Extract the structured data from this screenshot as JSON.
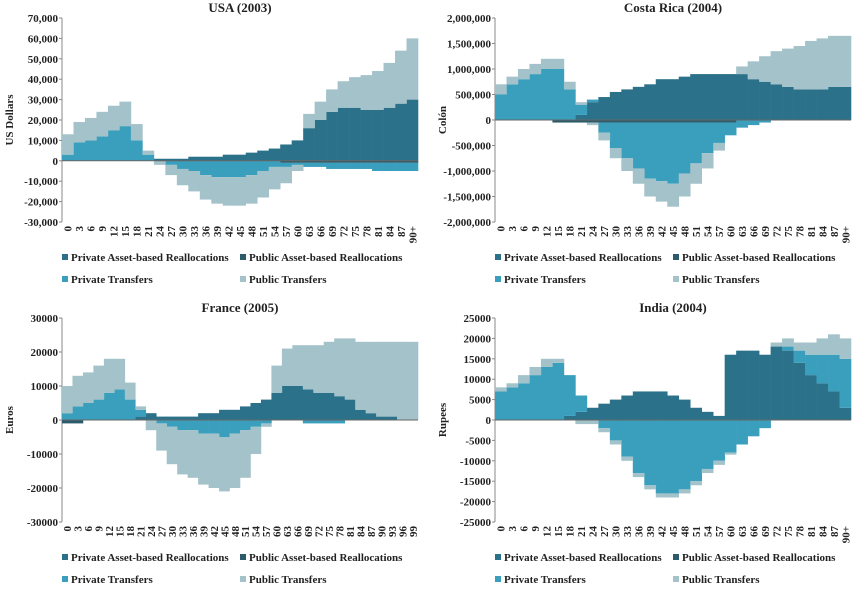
{
  "chart_data": [
    {
      "type": "bar",
      "stacked": true,
      "title": "USA (2003)",
      "y_label": "US Dollars",
      "categories": [
        "0",
        "3",
        "6",
        "9",
        "12",
        "15",
        "18",
        "21",
        "24",
        "27",
        "30",
        "33",
        "36",
        "39",
        "42",
        "45",
        "48",
        "51",
        "54",
        "57",
        "60",
        "63",
        "66",
        "69",
        "72",
        "75",
        "78",
        "81",
        "84",
        "87",
        "90+"
      ],
      "series": [
        {
          "name": "Private Asset-based Reallocations",
          "color": "#2b7189",
          "values": [
            0,
            0,
            0,
            0,
            0,
            0,
            0,
            0,
            1000,
            1000,
            1000,
            2000,
            2000,
            2000,
            3000,
            3000,
            4000,
            5000,
            6000,
            8000,
            10000,
            16000,
            20000,
            24000,
            26000,
            26000,
            25000,
            25000,
            26000,
            28000,
            30000
          ]
        },
        {
          "name": "Public Asset-based Reallocations",
          "color": "#2c5b6b",
          "values": [
            0,
            0,
            0,
            0,
            0,
            0,
            0,
            0,
            0,
            0,
            0,
            0,
            0,
            0,
            0,
            0,
            0,
            0,
            0,
            -1000,
            -1000,
            -1000,
            -1000,
            -1000,
            -1000,
            -1000,
            -1000,
            -1000,
            -1000,
            -1000,
            -1000
          ]
        },
        {
          "name": "Private Transfers",
          "color": "#3a9fbd",
          "values": [
            3000,
            9000,
            10000,
            12000,
            15000,
            17000,
            10000,
            3000,
            0,
            -2000,
            -4000,
            -5000,
            -7000,
            -8000,
            -8000,
            -8000,
            -7000,
            -5000,
            -3000,
            -2000,
            -1000,
            -2000,
            -2000,
            -3000,
            -3000,
            -3000,
            -3000,
            -4000,
            -4000,
            -4000,
            -4000
          ]
        },
        {
          "name": "Public Transfers",
          "color": "#a3c2c9",
          "values": [
            10000,
            10000,
            11000,
            12000,
            12000,
            12000,
            8000,
            2000,
            -2000,
            -5000,
            -8000,
            -10000,
            -12000,
            -13000,
            -14000,
            -14000,
            -14000,
            -13000,
            -11000,
            -8000,
            -3000,
            7000,
            9000,
            11000,
            13000,
            15000,
            17000,
            19000,
            22000,
            26000,
            30000
          ]
        }
      ],
      "ylim": [
        -30000,
        70000
      ],
      "yticks": [
        {
          "value": -30000,
          "label": "-30,000"
        },
        {
          "value": -20000,
          "label": "-20,000"
        },
        {
          "value": -10000,
          "label": "-10,000"
        },
        0,
        {
          "value": 10000,
          "label": "10,000"
        },
        {
          "value": 20000,
          "label": "20,000"
        },
        {
          "value": 30000,
          "label": "30,000"
        },
        {
          "value": 40000,
          "label": "40,000"
        },
        {
          "value": 50000,
          "label": "50,000"
        },
        {
          "value": 60000,
          "label": "60,000"
        },
        {
          "value": 70000,
          "label": "70,000"
        }
      ]
    },
    {
      "type": "bar",
      "stacked": true,
      "title": "Costa Rica (2004)",
      "y_label": "Colón",
      "categories": [
        "0",
        "3",
        "6",
        "9",
        "12",
        "15",
        "18",
        "21",
        "24",
        "27",
        "30",
        "33",
        "36",
        "39",
        "42",
        "45",
        "48",
        "51",
        "54",
        "57",
        "60",
        "63",
        "66",
        "69",
        "72",
        "75",
        "78",
        "81",
        "84",
        "87",
        "90+"
      ],
      "series": [
        {
          "name": "Private Asset-based Reallocations",
          "color": "#2b7189",
          "values": [
            0,
            0,
            0,
            0,
            0,
            0,
            0,
            100000,
            350000,
            450000,
            550000,
            600000,
            650000,
            700000,
            800000,
            800000,
            850000,
            900000,
            900000,
            900000,
            900000,
            900000,
            800000,
            750000,
            700000,
            650000,
            600000,
            600000,
            600000,
            650000,
            650000
          ]
        },
        {
          "name": "Public Asset-based Reallocations",
          "color": "#2c5b6b",
          "values": [
            0,
            0,
            0,
            0,
            0,
            -50000,
            -50000,
            -50000,
            -50000,
            -50000,
            -50000,
            -50000,
            -50000,
            -50000,
            -50000,
            -50000,
            -50000,
            -50000,
            -50000,
            -50000,
            -50000,
            0,
            0,
            0,
            0,
            0,
            0,
            0,
            0,
            0,
            0
          ]
        },
        {
          "name": "Private Transfers",
          "color": "#3a9fbd",
          "values": [
            500000,
            700000,
            800000,
            900000,
            1000000,
            1000000,
            600000,
            200000,
            50000,
            -200000,
            -500000,
            -700000,
            -900000,
            -1100000,
            -1150000,
            -1200000,
            -1000000,
            -800000,
            -600000,
            -400000,
            -250000,
            -150000,
            -100000,
            -50000,
            0,
            0,
            0,
            0,
            0,
            0,
            0
          ]
        },
        {
          "name": "Public Transfers",
          "color": "#a3c2c9",
          "values": [
            200000,
            150000,
            200000,
            200000,
            200000,
            200000,
            150000,
            50000,
            -50000,
            -150000,
            -200000,
            -250000,
            -300000,
            -350000,
            -400000,
            -450000,
            -450000,
            -400000,
            -300000,
            -150000,
            0,
            150000,
            350000,
            500000,
            650000,
            750000,
            850000,
            950000,
            1000000,
            1000000,
            1000000
          ]
        }
      ],
      "ylim": [
        -2000000,
        2000000
      ],
      "yticks": [
        {
          "value": -2000000,
          "label": "-2,000,000"
        },
        {
          "value": -1500000,
          "label": "-1,500,000"
        },
        {
          "value": -1000000,
          "label": "-1,000,000"
        },
        {
          "value": -500000,
          "label": "-500,000"
        },
        0,
        {
          "value": 500000,
          "label": "500,000"
        },
        {
          "value": 1000000,
          "label": "1,000,000"
        },
        {
          "value": 1500000,
          "label": "1,500,000"
        },
        {
          "value": 2000000,
          "label": "2,000,000"
        }
      ]
    },
    {
      "type": "bar",
      "stacked": true,
      "title": "France (2005)",
      "y_label": "Euros",
      "categories": [
        "0",
        "3",
        "6",
        "9",
        "12",
        "15",
        "18",
        "21",
        "24",
        "27",
        "30",
        "33",
        "36",
        "39",
        "42",
        "45",
        "48",
        "51",
        "54",
        "57",
        "60",
        "63",
        "66",
        "69",
        "72",
        "75",
        "78",
        "81",
        "84",
        "87",
        "90",
        "93",
        "96",
        "99"
      ],
      "series": [
        {
          "name": "Private Asset-based Reallocations",
          "color": "#2b7189",
          "values": [
            0,
            0,
            0,
            0,
            0,
            0,
            0,
            1000,
            2000,
            1000,
            1000,
            1000,
            1000,
            2000,
            2000,
            3000,
            3000,
            4000,
            5000,
            6000,
            8000,
            10000,
            10000,
            9000,
            8000,
            8000,
            7000,
            6000,
            3000,
            2000,
            1000,
            1000,
            0,
            0
          ]
        },
        {
          "name": "Public Asset-based Reallocations",
          "color": "#2c5b6b",
          "values": [
            -1000,
            -1000,
            0,
            0,
            0,
            0,
            0,
            0,
            0,
            0,
            0,
            0,
            0,
            0,
            0,
            0,
            0,
            0,
            0,
            0,
            0,
            0,
            0,
            0,
            0,
            0,
            0,
            0,
            0,
            0,
            0,
            0,
            0,
            0
          ]
        },
        {
          "name": "Private Transfers",
          "color": "#3a9fbd",
          "values": [
            2000,
            4000,
            5000,
            6000,
            8000,
            9000,
            6000,
            2000,
            0,
            -1000,
            -2000,
            -3000,
            -3000,
            -4000,
            -4000,
            -5000,
            -4000,
            -3000,
            -2000,
            -1000,
            0,
            0,
            0,
            -1000,
            -1000,
            -1000,
            -1000,
            0,
            0,
            0,
            0,
            0,
            0,
            0
          ]
        },
        {
          "name": "Public Transfers",
          "color": "#a3c2c9",
          "values": [
            8000,
            9000,
            9000,
            10000,
            10000,
            9000,
            5000,
            1000,
            -3000,
            -8000,
            -11000,
            -13000,
            -14000,
            -15000,
            -16000,
            -16000,
            -16000,
            -14000,
            -8000,
            -1000,
            8000,
            11000,
            12000,
            13000,
            14000,
            15000,
            17000,
            18000,
            20000,
            21000,
            22000,
            22000,
            23000,
            23000
          ]
        }
      ],
      "ylim": [
        -30000,
        30000
      ],
      "yticks": [
        -30000,
        -20000,
        -10000,
        0,
        10000,
        20000,
        30000
      ]
    },
    {
      "type": "bar",
      "stacked": true,
      "title": "India (2004)",
      "y_label": "Rupees",
      "categories": [
        "0",
        "3",
        "6",
        "9",
        "12",
        "15",
        "18",
        "21",
        "24",
        "27",
        "30",
        "33",
        "36",
        "39",
        "42",
        "45",
        "48",
        "51",
        "54",
        "57",
        "60",
        "63",
        "66",
        "69",
        "72",
        "75",
        "78",
        "81",
        "84",
        "87",
        "90+"
      ],
      "series": [
        {
          "name": "Private Asset-based Reallocations",
          "color": "#2b7189",
          "values": [
            0,
            0,
            0,
            0,
            0,
            0,
            1000,
            2000,
            3000,
            4000,
            5000,
            6000,
            7000,
            7000,
            7000,
            6000,
            5000,
            3000,
            2000,
            1000,
            16000,
            17000,
            17000,
            16000,
            18000,
            17000,
            14000,
            11000,
            9000,
            7000,
            3000
          ]
        },
        {
          "name": "Public Asset-based Reallocations",
          "color": "#2c5b6b",
          "values": [
            0,
            0,
            0,
            0,
            0,
            0,
            0,
            0,
            0,
            0,
            0,
            0,
            0,
            0,
            0,
            0,
            0,
            0,
            0,
            0,
            0,
            0,
            0,
            0,
            0,
            0,
            0,
            0,
            0,
            0,
            0
          ]
        },
        {
          "name": "Private Transfers",
          "color": "#3a9fbd",
          "values": [
            7000,
            8000,
            9000,
            11000,
            13000,
            14000,
            10000,
            4000,
            0,
            -2000,
            -5000,
            -9000,
            -13000,
            -16000,
            -18000,
            -18000,
            -17000,
            -15000,
            -12000,
            -10000,
            -8000,
            -6000,
            -4000,
            -2000,
            0,
            1000,
            3000,
            5000,
            7000,
            9000,
            12000
          ]
        },
        {
          "name": "Public Transfers",
          "color": "#a3c2c9",
          "values": [
            1000,
            1000,
            2000,
            2000,
            2000,
            1000,
            0,
            -1000,
            -1000,
            -1000,
            -1000,
            -1000,
            -1000,
            -1000,
            -1000,
            -1000,
            -1000,
            -1000,
            -1000,
            -1000,
            -500,
            0,
            0,
            0,
            1000,
            2000,
            2000,
            3000,
            4000,
            5000,
            5000
          ]
        }
      ],
      "ylim": [
        -25000,
        25000
      ],
      "yticks": [
        -25000,
        -20000,
        -15000,
        -10000,
        -5000,
        0,
        5000,
        10000,
        15000,
        20000,
        25000
      ]
    }
  ]
}
